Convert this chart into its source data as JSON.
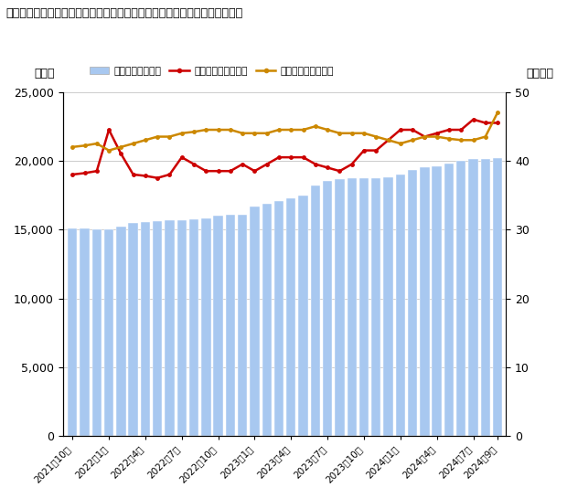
{
  "title": "近畿圏（関西）の中古マンション在庫件数、成約㎡単価、在庫㎡単価の推移",
  "bar_values": [
    15100,
    15050,
    15000,
    15000,
    15200,
    15500,
    15550,
    15600,
    15650,
    15700,
    15750,
    15800,
    16000,
    16050,
    16100,
    16700,
    16900,
    17100,
    17300,
    17500,
    18200,
    18500,
    18650,
    18700,
    18700,
    18750,
    18800,
    19000,
    19300,
    19500,
    19600,
    19800,
    20000,
    20100,
    20150,
    20200
  ],
  "contract_price": [
    38.0,
    38.2,
    38.5,
    44.5,
    41.0,
    38.0,
    37.8,
    37.5,
    38.0,
    40.5,
    39.5,
    38.5,
    38.5,
    38.5,
    39.5,
    38.5,
    39.5,
    40.5,
    40.5,
    40.5,
    39.5,
    39.0,
    38.5,
    39.5,
    41.5,
    41.5,
    43.0,
    44.5,
    44.5,
    43.5,
    44.0,
    44.5,
    44.5,
    46.0,
    45.5,
    45.5
  ],
  "stock_price": [
    42.0,
    42.2,
    42.5,
    41.5,
    42.0,
    42.5,
    43.0,
    43.5,
    43.5,
    44.0,
    44.2,
    44.5,
    44.5,
    44.5,
    44.0,
    44.0,
    44.0,
    44.5,
    44.5,
    44.5,
    45.0,
    44.5,
    44.0,
    44.0,
    44.0,
    43.5,
    43.0,
    42.5,
    43.0,
    43.5,
    43.5,
    43.2,
    43.0,
    43.0,
    43.5,
    47.0
  ],
  "bar_color": "#a8c8f0",
  "contract_color": "#cc0000",
  "stock_color": "#cc8800",
  "ylabel_left": "（件）",
  "ylabel_right": "（万円）",
  "ylim_left": [
    0,
    25000
  ],
  "ylim_right": [
    0,
    50
  ],
  "yticks_left": [
    0,
    5000,
    10000,
    15000,
    20000,
    25000
  ],
  "yticks_right": [
    0,
    10,
    20,
    30,
    40,
    50
  ],
  "legend_bar": "在庫件数（左軸）",
  "legend_contract": "成約㎡単価（右軸）",
  "legend_stock": "在庫㎡単価（右軸）",
  "tick_labels": [
    "2021年10月",
    "2022年1月",
    "2022年4月",
    "2022年7月",
    "2022年10月",
    "2023年1月",
    "2023年4月",
    "2023年7月",
    "2023年10月",
    "2024年1月",
    "2024年4月",
    "2024年7月",
    "2024年9月"
  ],
  "tick_indices": [
    0,
    3,
    6,
    9,
    12,
    15,
    18,
    21,
    24,
    27,
    30,
    33,
    35
  ],
  "n_bars": 36
}
